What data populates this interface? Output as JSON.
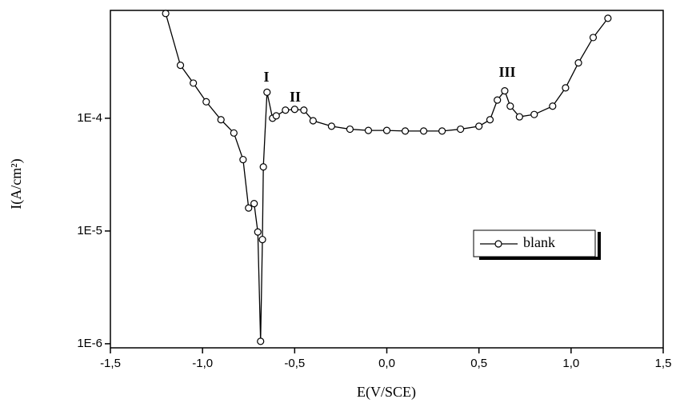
{
  "chart_data": {
    "type": "line",
    "log_y": true,
    "grid": false,
    "legend": "lower right",
    "xlabel": "E(V/SCE)",
    "ylabel": "I(A/cm²)",
    "xlim": [
      -1.5,
      1.5
    ],
    "xticks": [
      {
        "value": -1.5,
        "label": "-1,5"
      },
      {
        "value": -1.0,
        "label": "-1,0"
      },
      {
        "value": -0.5,
        "label": "-0,5"
      },
      {
        "value": 0.0,
        "label": "0,0"
      },
      {
        "value": 0.5,
        "label": "0,5"
      },
      {
        "value": 1.0,
        "label": "1,0"
      },
      {
        "value": 1.5,
        "label": "1,5"
      }
    ],
    "ylim": [
      9.2e-07,
      0.000905
    ],
    "yticks": [
      {
        "value": 1e-06,
        "label": "1E-6"
      },
      {
        "value": 1e-05,
        "label": "1E-5"
      },
      {
        "value": 0.0001,
        "label": "1E-4"
      }
    ],
    "annotations": [
      "I",
      "II",
      "III"
    ],
    "x": [
      -1.2,
      -1.12,
      -1.05,
      -0.98,
      -0.9,
      -0.83,
      -0.78,
      -0.75,
      -0.72,
      -0.7,
      -0.685,
      -0.675,
      -0.67,
      -0.65,
      -0.62,
      -0.6,
      -0.55,
      -0.5,
      -0.45,
      -0.4,
      -0.3,
      -0.2,
      -0.1,
      0.0,
      0.1,
      0.2,
      0.3,
      0.4,
      0.5,
      0.56,
      0.6,
      0.64,
      0.67,
      0.72,
      0.8,
      0.9,
      0.97,
      1.04,
      1.12,
      1.2
    ],
    "series": [
      {
        "name": "blank",
        "color": "#000000",
        "values": [
          0.00085,
          0.000295,
          0.000205,
          0.00014,
          9.7e-05,
          7.4e-05,
          4.3e-05,
          1.6e-05,
          1.75e-05,
          9.8e-06,
          1.05e-06,
          8.4e-06,
          3.7e-05,
          0.00017,
          0.0001,
          0.000105,
          0.000118,
          0.00012,
          0.000118,
          9.5e-05,
          8.5e-05,
          8e-05,
          7.8e-05,
          7.8e-05,
          7.7e-05,
          7.7e-05,
          7.7e-05,
          8e-05,
          8.5e-05,
          9.7e-05,
          0.000145,
          0.000175,
          0.000128,
          0.000103,
          0.000108,
          0.000128,
          0.000186,
          0.00031,
          0.00052,
          0.00077
        ]
      }
    ]
  }
}
